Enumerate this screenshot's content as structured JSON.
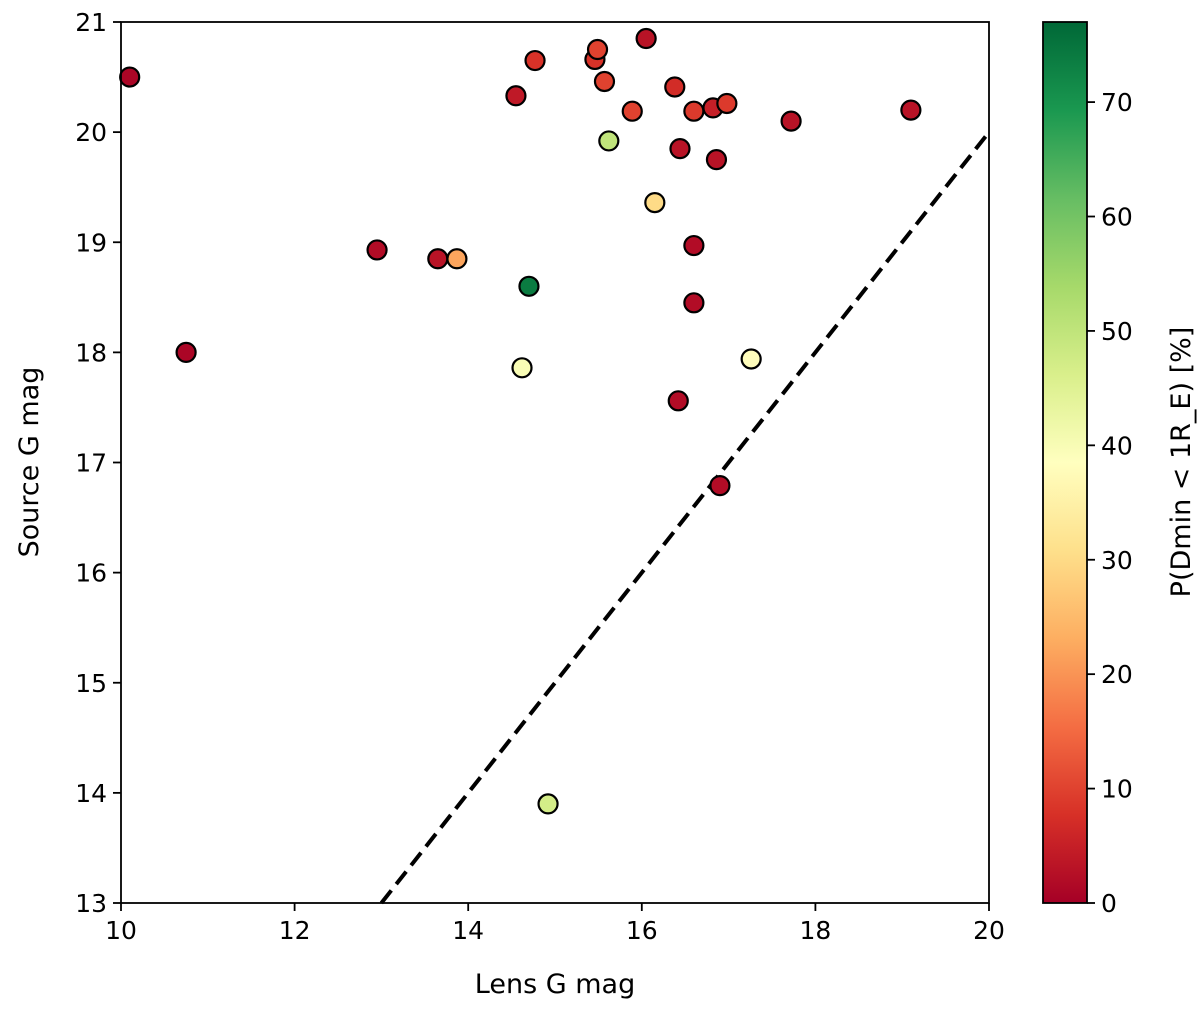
{
  "chart_data": {
    "type": "scatter",
    "title": "",
    "xlabel": "Lens G mag",
    "ylabel": "Source G mag",
    "xlim": [
      10,
      20
    ],
    "ylim": [
      13,
      21
    ],
    "xticks": [
      10,
      12,
      14,
      16,
      18,
      20
    ],
    "yticks": [
      13,
      14,
      15,
      16,
      17,
      18,
      19,
      20,
      21
    ],
    "grid": false,
    "reference_line": {
      "style": "dashed",
      "color": "#000000",
      "points": [
        [
          13,
          13
        ],
        [
          20,
          20
        ]
      ]
    },
    "colorbar": {
      "label": "P(Dmin < 1R_E) [%]",
      "range": [
        0,
        77
      ],
      "ticks": [
        0,
        10,
        20,
        30,
        40,
        50,
        60,
        70
      ],
      "colormap": "RdYlGn",
      "stops": [
        "#a50026",
        "#d73027",
        "#f46d43",
        "#fdae61",
        "#fee08b",
        "#ffffbf",
        "#d9ef8b",
        "#a6d96a",
        "#66bd63",
        "#1a9850",
        "#006837"
      ]
    },
    "points": [
      {
        "x": 10.1,
        "y": 20.5,
        "p": 1
      },
      {
        "x": 10.75,
        "y": 18.0,
        "p": 1
      },
      {
        "x": 12.95,
        "y": 18.93,
        "p": 2
      },
      {
        "x": 13.65,
        "y": 18.85,
        "p": 3
      },
      {
        "x": 13.87,
        "y": 18.85,
        "p": 22
      },
      {
        "x": 14.55,
        "y": 20.33,
        "p": 4
      },
      {
        "x": 14.62,
        "y": 17.86,
        "p": 40
      },
      {
        "x": 14.7,
        "y": 18.6,
        "p": 74
      },
      {
        "x": 14.77,
        "y": 20.65,
        "p": 8
      },
      {
        "x": 14.92,
        "y": 13.9,
        "p": 47
      },
      {
        "x": 15.46,
        "y": 20.66,
        "p": 8
      },
      {
        "x": 15.49,
        "y": 20.75,
        "p": 10
      },
      {
        "x": 15.57,
        "y": 20.46,
        "p": 10
      },
      {
        "x": 15.62,
        "y": 19.92,
        "p": 50
      },
      {
        "x": 15.89,
        "y": 20.19,
        "p": 10
      },
      {
        "x": 16.05,
        "y": 20.85,
        "p": 3
      },
      {
        "x": 16.15,
        "y": 19.36,
        "p": 30
      },
      {
        "x": 16.38,
        "y": 20.41,
        "p": 7
      },
      {
        "x": 16.42,
        "y": 17.56,
        "p": 2
      },
      {
        "x": 16.44,
        "y": 19.85,
        "p": 3
      },
      {
        "x": 16.6,
        "y": 20.19,
        "p": 9
      },
      {
        "x": 16.6,
        "y": 18.97,
        "p": 2
      },
      {
        "x": 16.6,
        "y": 18.45,
        "p": 2
      },
      {
        "x": 16.82,
        "y": 20.22,
        "p": 5
      },
      {
        "x": 16.86,
        "y": 19.75,
        "p": 3
      },
      {
        "x": 16.9,
        "y": 16.79,
        "p": 2
      },
      {
        "x": 16.98,
        "y": 20.26,
        "p": 9
      },
      {
        "x": 17.26,
        "y": 17.94,
        "p": 38
      },
      {
        "x": 17.72,
        "y": 20.1,
        "p": 3
      },
      {
        "x": 19.1,
        "y": 20.2,
        "p": 3
      }
    ]
  }
}
